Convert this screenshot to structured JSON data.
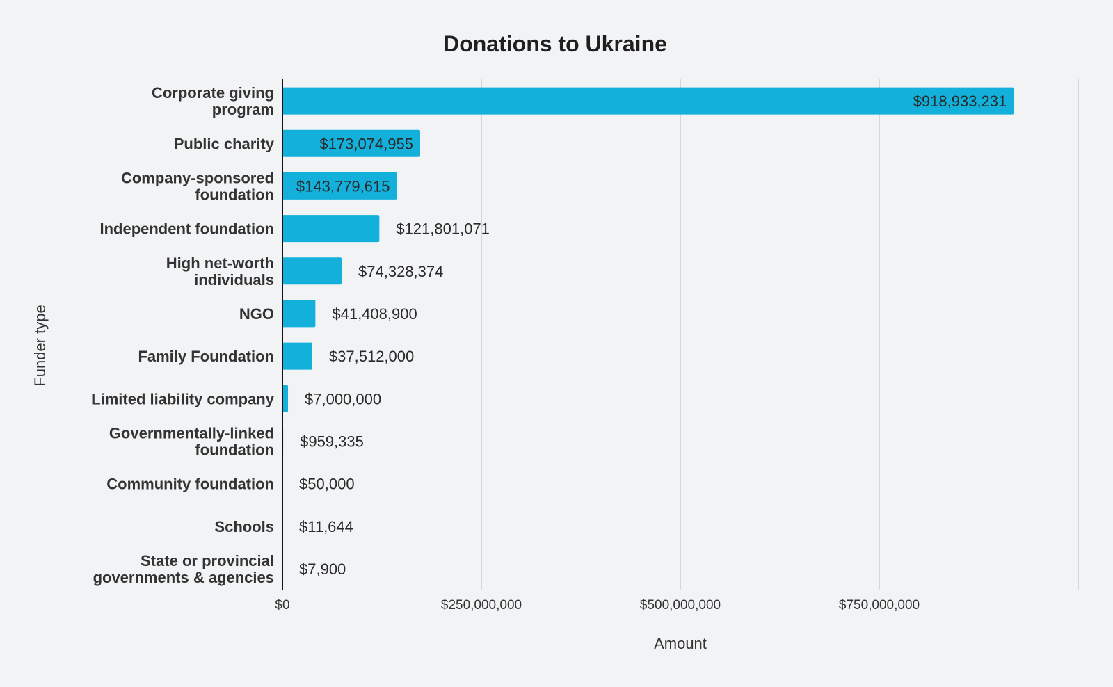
{
  "chart_data": {
    "type": "bar",
    "orientation": "horizontal",
    "title": "Donations to Ukraine",
    "xlabel": "Amount",
    "ylabel": "Funder type",
    "xlim": [
      0,
      1000000000
    ],
    "x_ticks": [
      0,
      250000000,
      500000000,
      750000000
    ],
    "x_tick_labels": [
      "$0",
      "$250,000,000",
      "$500,000,000",
      "$750,000,000"
    ],
    "grid": true,
    "legend": "none",
    "bar_color": "#12b0da",
    "categories": [
      [
        "Corporate giving",
        "program"
      ],
      [
        "Public charity"
      ],
      [
        "Company-sponsored",
        "foundation"
      ],
      [
        "Independent foundation"
      ],
      [
        "High net-worth",
        "individuals"
      ],
      [
        "NGO"
      ],
      [
        "Family Foundation"
      ],
      [
        "Limited liability company"
      ],
      [
        "Governmentally-linked",
        "foundation"
      ],
      [
        "Community foundation"
      ],
      [
        "Schools"
      ],
      [
        "State or provincial",
        "governments & agencies"
      ]
    ],
    "values": [
      918933231,
      173074955,
      143779615,
      121801071,
      74328374,
      41408900,
      37512000,
      7000000,
      959335,
      50000,
      11644,
      7900
    ],
    "value_labels": [
      "$918,933,231",
      "$173,074,955",
      "$143,779,615",
      "$121,801,071",
      "$74,328,374",
      "$41,408,900",
      "$37,512,000",
      "$7,000,000",
      "$959,335",
      "$50,000",
      "$11,644",
      "$7,900"
    ]
  }
}
